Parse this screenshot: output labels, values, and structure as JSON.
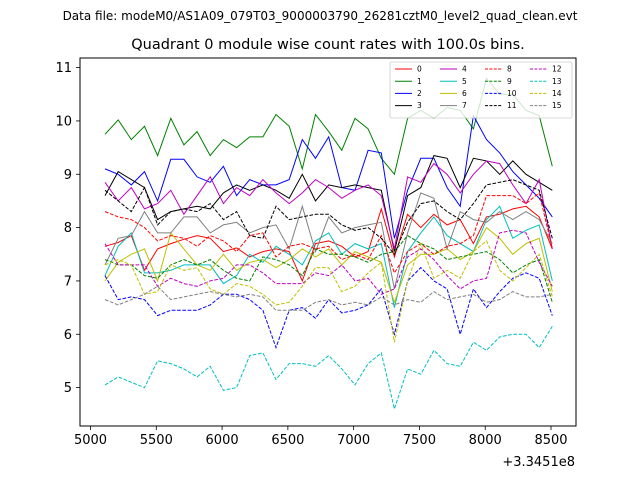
{
  "chart_data": {
    "type": "line",
    "suptitle": "Data file: modeM0/AS1A09_079T03_9000003790_26281cztM0_level2_quad_clean.evt",
    "title": "Quadrant 0 module wise count rates with 100.0s bins.",
    "x_offset_label": "+3.3451e8",
    "x_ticks": [
      5000,
      5500,
      6000,
      6500,
      7000,
      7500,
      8000,
      8500
    ],
    "y_ticks": [
      5,
      6,
      7,
      8,
      9,
      10,
      11
    ],
    "xlim": [
      4920,
      8690
    ],
    "ylim": [
      4.28,
      11.18
    ],
    "legend_placement": "top-right",
    "x": [
      5110,
      5210,
      5310,
      5410,
      5510,
      5610,
      5710,
      5810,
      5910,
      6010,
      6110,
      6210,
      6310,
      6410,
      6510,
      6610,
      6710,
      6810,
      6910,
      7010,
      7110,
      7210,
      7310,
      7410,
      7510,
      7610,
      7710,
      7810,
      7910,
      8010,
      8110,
      8210,
      8310,
      8410,
      8510
    ],
    "series": [
      {
        "name": "0",
        "color": "#ff0000",
        "dash": "solid",
        "values": [
          7.65,
          7.72,
          7.85,
          7.2,
          7.6,
          7.7,
          7.78,
          7.85,
          7.8,
          7.55,
          7.62,
          7.45,
          7.55,
          7.6,
          7.55,
          7.0,
          7.7,
          7.75,
          7.65,
          7.45,
          7.55,
          8.35,
          7.45,
          8.25,
          8.0,
          8.25,
          8.05,
          8.15,
          7.7,
          8.2,
          8.25,
          8.35,
          8.4,
          8.2,
          7.6
        ]
      },
      {
        "name": "1",
        "color": "#008000",
        "dash": "solid",
        "values": [
          9.75,
          10.02,
          9.65,
          9.9,
          9.35,
          10.05,
          9.55,
          9.8,
          9.35,
          9.65,
          9.5,
          9.7,
          9.7,
          10.12,
          9.9,
          9.1,
          10.12,
          9.8,
          9.45,
          10.05,
          9.85,
          9.3,
          9.0,
          10.05,
          10.2,
          10.05,
          10.25,
          10.2,
          9.85,
          10.8,
          10.5,
          10.5,
          10.2,
          10.1,
          9.15
        ]
      },
      {
        "name": "2",
        "color": "#0000ff",
        "dash": "solid",
        "values": [
          9.1,
          9.0,
          8.8,
          9.05,
          8.5,
          9.28,
          9.28,
          8.95,
          8.85,
          9.15,
          8.6,
          8.9,
          8.8,
          8.8,
          8.9,
          9.65,
          9.3,
          9.7,
          8.75,
          8.7,
          9.45,
          9.4,
          7.8,
          8.7,
          9.3,
          9.3,
          8.75,
          8.4,
          10.1,
          9.65,
          9.4,
          9.05,
          8.8,
          8.55,
          8.2
        ]
      },
      {
        "name": "3",
        "color": "#000000",
        "dash": "solid",
        "values": [
          8.6,
          9.05,
          8.9,
          8.75,
          8.15,
          8.3,
          8.35,
          8.4,
          8.35,
          8.65,
          8.8,
          8.7,
          8.8,
          8.7,
          8.55,
          9.0,
          8.5,
          8.8,
          8.75,
          8.8,
          8.75,
          8.7,
          7.55,
          8.6,
          8.75,
          9.35,
          9.3,
          8.75,
          9.3,
          9.25,
          9.0,
          9.25,
          9.0,
          8.85,
          8.7
        ]
      },
      {
        "name": "4",
        "color": "#bf00bf",
        "dash": "solid",
        "values": [
          8.85,
          8.5,
          8.75,
          8.35,
          8.45,
          8.7,
          8.25,
          8.6,
          8.95,
          8.45,
          8.75,
          8.6,
          8.9,
          8.65,
          8.45,
          8.65,
          8.9,
          8.75,
          8.55,
          8.7,
          8.8,
          8.6,
          7.6,
          8.95,
          8.85,
          9.2,
          9.0,
          8.65,
          9.0,
          9.25,
          9.2,
          8.8,
          8.45,
          8.9,
          7.6
        ]
      },
      {
        "name": "5",
        "color": "#00bfbf",
        "dash": "solid",
        "values": [
          7.1,
          7.65,
          7.9,
          7.15,
          7.15,
          7.2,
          7.3,
          7.3,
          7.3,
          6.95,
          7.1,
          7.5,
          7.35,
          7.65,
          7.5,
          7.3,
          7.75,
          7.9,
          7.5,
          7.7,
          7.6,
          7.7,
          6.5,
          7.55,
          7.9,
          8.2,
          7.85,
          7.7,
          7.55,
          8.15,
          8.4,
          7.8,
          7.95,
          8.05,
          7.0
        ]
      },
      {
        "name": "6",
        "color": "#bfbf00",
        "dash": "solid",
        "values": [
          7.0,
          7.35,
          7.5,
          7.6,
          7.0,
          7.9,
          7.6,
          7.3,
          7.2,
          7.5,
          7.2,
          7.35,
          7.4,
          7.25,
          7.4,
          7.6,
          7.45,
          7.6,
          7.3,
          7.55,
          7.45,
          7.35,
          6.6,
          7.3,
          7.5,
          7.5,
          7.6,
          7.4,
          7.55,
          8.0,
          7.8,
          7.5,
          7.7,
          7.8,
          6.8
        ]
      },
      {
        "name": "7",
        "color": "#808080",
        "dash": "solid",
        "values": [
          7.3,
          7.8,
          7.85,
          8.3,
          7.9,
          7.9,
          8.2,
          8.2,
          7.9,
          8.05,
          8.1,
          7.9,
          8.0,
          8.05,
          7.6,
          8.4,
          7.55,
          8.2,
          7.9,
          8.0,
          8.05,
          8.1,
          6.85,
          7.9,
          8.65,
          8.55,
          7.6,
          8.3,
          8.15,
          8.1,
          8.3,
          8.15,
          8.3,
          8.15,
          7.7
        ]
      },
      {
        "name": "8",
        "color": "#ff0000",
        "dash": "dashed",
        "values": [
          8.3,
          8.2,
          8.15,
          8.0,
          7.75,
          7.85,
          7.8,
          7.65,
          7.85,
          7.75,
          7.55,
          7.85,
          7.9,
          7.45,
          7.65,
          7.7,
          7.6,
          7.65,
          7.4,
          7.5,
          7.4,
          7.85,
          7.15,
          7.55,
          7.7,
          7.5,
          7.65,
          7.7,
          7.85,
          8.6,
          8.6,
          8.6,
          8.45,
          8.65,
          7.6
        ]
      },
      {
        "name": "9",
        "color": "#008000",
        "dash": "dashed",
        "values": [
          7.4,
          7.3,
          7.3,
          7.1,
          7.05,
          7.3,
          7.4,
          7.3,
          7.4,
          7.2,
          7.05,
          7.0,
          7.45,
          7.4,
          7.3,
          7.1,
          7.6,
          7.5,
          7.5,
          7.45,
          7.35,
          7.5,
          7.55,
          7.85,
          7.7,
          7.6,
          7.4,
          7.45,
          7.5,
          7.55,
          7.4,
          7.15,
          7.3,
          7.4,
          6.6
        ]
      },
      {
        "name": "10",
        "color": "#0000ff",
        "dash": "dashed",
        "values": [
          7.1,
          6.65,
          6.7,
          6.65,
          6.35,
          6.45,
          6.45,
          6.45,
          6.55,
          6.75,
          6.75,
          6.65,
          6.45,
          5.75,
          6.45,
          6.5,
          6.3,
          6.65,
          6.4,
          6.45,
          6.55,
          6.85,
          6.0,
          7.0,
          7.25,
          7.0,
          6.85,
          6.0,
          6.85,
          6.5,
          6.8,
          7.05,
          7.15,
          7.05,
          6.35
        ]
      },
      {
        "name": "11",
        "color": "#000000",
        "dash": "dashed",
        "values": [
          8.7,
          8.5,
          8.3,
          8.75,
          8.05,
          8.3,
          8.35,
          8.3,
          8.45,
          8.15,
          8.3,
          7.85,
          7.8,
          8.4,
          8.15,
          8.2,
          8.25,
          8.25,
          8.05,
          7.95,
          8.0,
          7.8,
          7.5,
          8.1,
          8.45,
          8.5,
          8.3,
          8.15,
          8.45,
          8.8,
          8.85,
          8.9,
          8.8,
          8.7,
          7.8
        ]
      },
      {
        "name": "12",
        "color": "#bf00bf",
        "dash": "dashed",
        "values": [
          7.7,
          7.3,
          7.3,
          7.3,
          6.9,
          7.05,
          6.95,
          6.9,
          7.0,
          7.05,
          7.3,
          7.3,
          7.15,
          6.95,
          6.95,
          6.95,
          7.15,
          7.1,
          7.3,
          7.0,
          7.05,
          6.75,
          6.85,
          7.45,
          7.6,
          7.4,
          7.1,
          6.85,
          7.0,
          7.05,
          7.9,
          7.95,
          7.9,
          7.35,
          6.9
        ]
      },
      {
        "name": "13",
        "color": "#00bfbf",
        "dash": "dashed",
        "values": [
          5.05,
          5.2,
          5.1,
          5.0,
          5.5,
          5.45,
          5.35,
          5.2,
          5.4,
          4.95,
          5.0,
          5.6,
          5.65,
          5.15,
          5.45,
          5.45,
          5.4,
          5.6,
          5.35,
          5.05,
          5.45,
          5.65,
          4.6,
          5.35,
          5.25,
          5.7,
          5.45,
          5.4,
          5.85,
          5.7,
          5.95,
          6.0,
          6.0,
          5.75,
          6.15
        ]
      },
      {
        "name": "14",
        "color": "#bfbf00",
        "dash": "dashed",
        "values": [
          7.3,
          7.4,
          7.3,
          6.75,
          6.8,
          7.3,
          7.2,
          7.25,
          6.85,
          6.75,
          6.95,
          6.9,
          6.75,
          6.55,
          6.6,
          6.9,
          7.25,
          7.25,
          6.8,
          6.9,
          7.15,
          7.35,
          5.85,
          7.0,
          7.7,
          7.05,
          7.2,
          7.05,
          7.55,
          7.75,
          7.2,
          7.0,
          7.25,
          7.5,
          6.7
        ]
      },
      {
        "name": "15",
        "color": "#808080",
        "dash": "dashed",
        "values": [
          6.65,
          6.55,
          6.65,
          6.75,
          6.9,
          6.65,
          6.7,
          6.75,
          6.8,
          6.75,
          6.7,
          6.75,
          6.7,
          6.45,
          6.45,
          6.45,
          6.6,
          6.65,
          6.55,
          6.6,
          6.55,
          6.7,
          6.55,
          6.65,
          6.6,
          6.8,
          6.65,
          6.7,
          6.75,
          6.6,
          6.65,
          6.8,
          6.7,
          6.7,
          6.75
        ]
      }
    ]
  }
}
